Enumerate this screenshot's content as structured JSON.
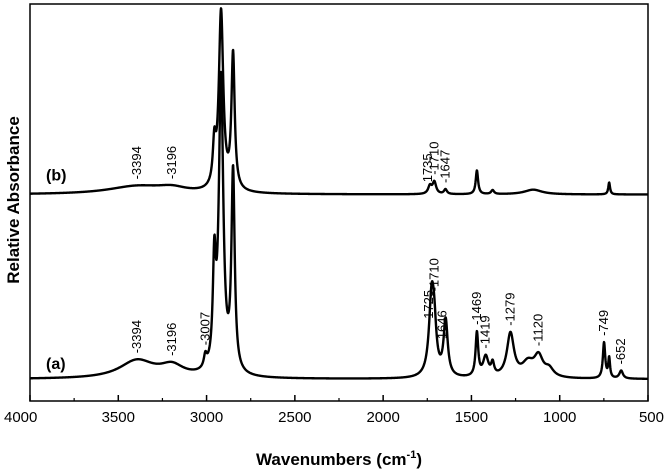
{
  "chart_data": {
    "type": "line",
    "xlabel": "Wavenumbers (cm",
    "xlabel_sup": "-1",
    "xlabel_close": ")",
    "ylabel": "Relative Absorbance",
    "xlim": [
      4000,
      500
    ],
    "ylim": [
      0,
      1
    ],
    "x_reversed": true,
    "x_ticks": [
      "4000",
      "3500",
      "3000",
      "2500",
      "2000",
      "1500",
      "1000",
      "500"
    ],
    "grid": false,
    "series": [
      {
        "name": "(a)",
        "baseline": 0.055,
        "peaks": [
          {
            "wn": 3394,
            "h": 0.045,
            "w": 120
          },
          {
            "wn": 3196,
            "h": 0.028,
            "w": 80
          },
          {
            "wn": 3007,
            "h": 0.03,
            "w": 10
          },
          {
            "wn": 2956,
            "h": 0.25,
            "w": 10
          },
          {
            "wn": 2918,
            "h": 0.74,
            "w": 15
          },
          {
            "wn": 2850,
            "h": 0.5,
            "w": 11
          },
          {
            "wn": 1725,
            "h": 0.2,
            "w": 18
          },
          {
            "wn": 1710,
            "h": 0.08,
            "w": 14
          },
          {
            "wn": 1646,
            "h": 0.14,
            "w": 14
          },
          {
            "wn": 1469,
            "h": 0.11,
            "w": 9
          },
          {
            "wn": 1419,
            "h": 0.05,
            "w": 18
          },
          {
            "wn": 1380,
            "h": 0.03,
            "w": 10
          },
          {
            "wn": 1279,
            "h": 0.11,
            "w": 24
          },
          {
            "wn": 1180,
            "h": 0.035,
            "w": 40
          },
          {
            "wn": 1120,
            "h": 0.05,
            "w": 30
          },
          {
            "wn": 1060,
            "h": 0.02,
            "w": 30
          },
          {
            "wn": 749,
            "h": 0.09,
            "w": 8
          },
          {
            "wn": 720,
            "h": 0.05,
            "w": 6
          },
          {
            "wn": 652,
            "h": 0.02,
            "w": 12
          }
        ],
        "peak_labels": [
          {
            "text": "-3394",
            "wn": 3394
          },
          {
            "text": "-3196",
            "wn": 3196
          },
          {
            "text": "-3007",
            "wn": 3007
          },
          {
            "text": "1725",
            "wn": 1740
          },
          {
            "text": "-1710",
            "wn": 1710
          },
          {
            "text": "-1646",
            "wn": 1665
          },
          {
            "text": "-1469",
            "wn": 1469
          },
          {
            "text": "-1419",
            "wn": 1419
          },
          {
            "text": "-1279",
            "wn": 1279
          },
          {
            "text": "-1120",
            "wn": 1120
          },
          {
            "text": "-749",
            "wn": 749
          },
          {
            "text": "-652",
            "wn": 652
          }
        ]
      },
      {
        "name": "(b)",
        "baseline": 0.52,
        "peaks": [
          {
            "wn": 3394,
            "h": 0.02,
            "w": 200
          },
          {
            "wn": 3196,
            "h": 0.012,
            "w": 100
          },
          {
            "wn": 2956,
            "h": 0.1,
            "w": 10
          },
          {
            "wn": 2918,
            "h": 0.45,
            "w": 15
          },
          {
            "wn": 2850,
            "h": 0.34,
            "w": 11
          },
          {
            "wn": 1735,
            "h": 0.02,
            "w": 12
          },
          {
            "wn": 1710,
            "h": 0.03,
            "w": 12
          },
          {
            "wn": 1647,
            "h": 0.012,
            "w": 10
          },
          {
            "wn": 1469,
            "h": 0.06,
            "w": 8
          },
          {
            "wn": 1380,
            "h": 0.01,
            "w": 10
          },
          {
            "wn": 1150,
            "h": 0.012,
            "w": 60
          },
          {
            "wn": 720,
            "h": 0.03,
            "w": 6
          }
        ],
        "peak_labels": [
          {
            "text": "-3394",
            "wn": 3394
          },
          {
            "text": "-3196",
            "wn": 3196
          },
          {
            "text": "1735",
            "wn": 1745
          },
          {
            "text": "-1710",
            "wn": 1710
          },
          {
            "text": "-1647",
            "wn": 1647
          }
        ]
      }
    ]
  }
}
